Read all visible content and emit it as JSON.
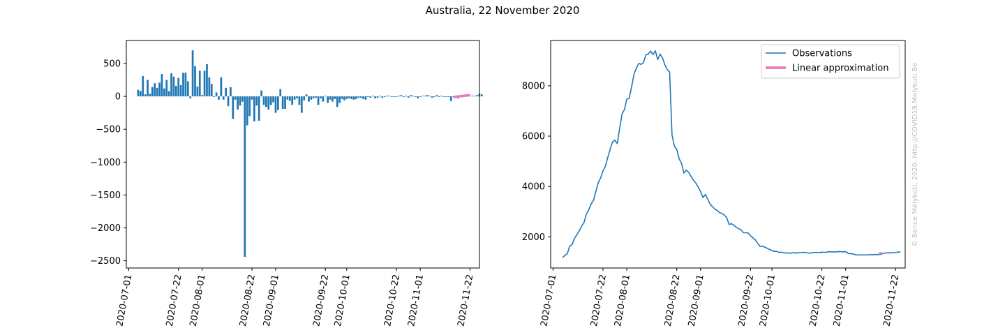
{
  "figure": {
    "title": "Australia, 22 November 2020",
    "watermark": "© Bence Mélykúti, 2020. http://COVID19.Melykuti.Be"
  },
  "colors": {
    "observations": "#1f77b4",
    "approximation": "#e377c2",
    "axes": "#000000"
  },
  "chart_data": [
    {
      "type": "bar",
      "title": "",
      "xlabel": "",
      "ylabel": "",
      "x_type": "date",
      "x_ticks": [
        "2020-07-01",
        "2020-07-22",
        "2020-08-01",
        "2020-08-22",
        "2020-09-01",
        "2020-09-22",
        "2020-10-01",
        "2020-10-22",
        "2020-11-01",
        "2020-11-22"
      ],
      "y_ticks": [
        500,
        0,
        -500,
        -1000,
        -1500,
        -2000,
        -2500
      ],
      "y_tick_labels": [
        "500",
        "0",
        "−500",
        "−1000",
        "−1500",
        "−2000",
        "−2500"
      ],
      "xlim": [
        "2020-06-30",
        "2020-11-26"
      ],
      "ylim": [
        -2610,
        850
      ],
      "grid": false,
      "start_date": "2020-07-05",
      "values": [
        100,
        80,
        310,
        30,
        250,
        40,
        140,
        200,
        130,
        210,
        340,
        120,
        250,
        80,
        350,
        300,
        160,
        280,
        170,
        360,
        360,
        230,
        -30,
        700,
        460,
        150,
        390,
        20,
        390,
        490,
        290,
        190,
        -10,
        60,
        -50,
        290,
        -50,
        130,
        -150,
        140,
        -340,
        -50,
        -200,
        -140,
        -80,
        -2440,
        -440,
        -300,
        -50,
        -380,
        -140,
        -370,
        90,
        -130,
        -160,
        -200,
        -130,
        -90,
        -250,
        -210,
        110,
        -190,
        -190,
        -50,
        -70,
        -130,
        -50,
        -30,
        -130,
        -250,
        -60,
        30,
        -80,
        -50,
        -30,
        -20,
        -130,
        -30,
        -80,
        10,
        -100,
        -50,
        -80,
        -40,
        -160,
        -100,
        -40,
        -60,
        -40,
        -30,
        -40,
        -50,
        -40,
        -20,
        -20,
        -40,
        -50,
        -10,
        -20,
        10,
        -30,
        -20,
        10,
        -20,
        -10,
        10,
        10,
        -10,
        -10,
        -10,
        10,
        20,
        -10,
        10,
        -20,
        20,
        10,
        -10,
        -30,
        -10,
        10,
        10,
        20,
        10,
        -20,
        -10,
        20,
        -10,
        10,
        -10,
        -10,
        -10,
        -70,
        -10,
        -20,
        -30,
        10,
        -10,
        10,
        10,
        10,
        10,
        10,
        20,
        40,
        30
      ],
      "series": [
        {
          "name": "Linear approximation",
          "type": "line",
          "x": [
            "2020-11-15",
            "2020-11-22"
          ],
          "values": [
            -10,
            20
          ]
        }
      ]
    },
    {
      "type": "line",
      "title": "",
      "xlabel": "",
      "ylabel": "",
      "x_type": "date",
      "x_ticks": [
        "2020-07-01",
        "2020-07-22",
        "2020-08-01",
        "2020-08-22",
        "2020-09-01",
        "2020-09-22",
        "2020-10-01",
        "2020-10-22",
        "2020-11-01",
        "2020-11-22"
      ],
      "y_ticks": [
        2000,
        4000,
        6000,
        8000
      ],
      "y_tick_labels": [
        "2000",
        "4000",
        "6000",
        "8000"
      ],
      "xlim": [
        "2020-06-30",
        "2020-11-26"
      ],
      "ylim": [
        760,
        9800
      ],
      "grid": false,
      "legend": "top-right",
      "series": [
        {
          "name": "Observations",
          "start_date": "2020-07-05",
          "values": [
            1180,
            1260,
            1330,
            1630,
            1690,
            1940,
            2080,
            2230,
            2420,
            2560,
            2900,
            3070,
            3300,
            3450,
            3800,
            4150,
            4340,
            4620,
            4800,
            5150,
            5480,
            5770,
            5840,
            5700,
            6300,
            6880,
            7050,
            7470,
            7500,
            7950,
            8450,
            8700,
            8890,
            8850,
            8920,
            9230,
            9260,
            9380,
            9240,
            9390,
            9040,
            9260,
            9110,
            8830,
            8640,
            8550,
            6050,
            5600,
            5470,
            5100,
            4920,
            4530,
            4650,
            4560,
            4400,
            4250,
            4140,
            3980,
            3800,
            3560,
            3680,
            3500,
            3300,
            3200,
            3100,
            3050,
            2960,
            2930,
            2860,
            2760,
            2490,
            2520,
            2460,
            2380,
            2320,
            2280,
            2160,
            2160,
            2150,
            2040,
            1960,
            1880,
            1740,
            1620,
            1620,
            1590,
            1540,
            1500,
            1450,
            1420,
            1420,
            1380,
            1390,
            1360,
            1360,
            1350,
            1350,
            1370,
            1350,
            1370,
            1370,
            1380,
            1380,
            1360,
            1350,
            1370,
            1380,
            1380,
            1370,
            1390,
            1380,
            1390,
            1410,
            1400,
            1400,
            1400,
            1410,
            1410,
            1400,
            1410,
            1340,
            1330,
            1320,
            1290,
            1280,
            1280,
            1280,
            1280,
            1280,
            1290,
            1290,
            1290,
            1300,
            1290,
            1310,
            1350,
            1360,
            1360,
            1360,
            1370,
            1380,
            1390,
            1400
          ]
        },
        {
          "name": "Linear approximation",
          "start_date": "2020-11-15",
          "values": [
            1320,
            1370
          ]
        }
      ]
    }
  ]
}
